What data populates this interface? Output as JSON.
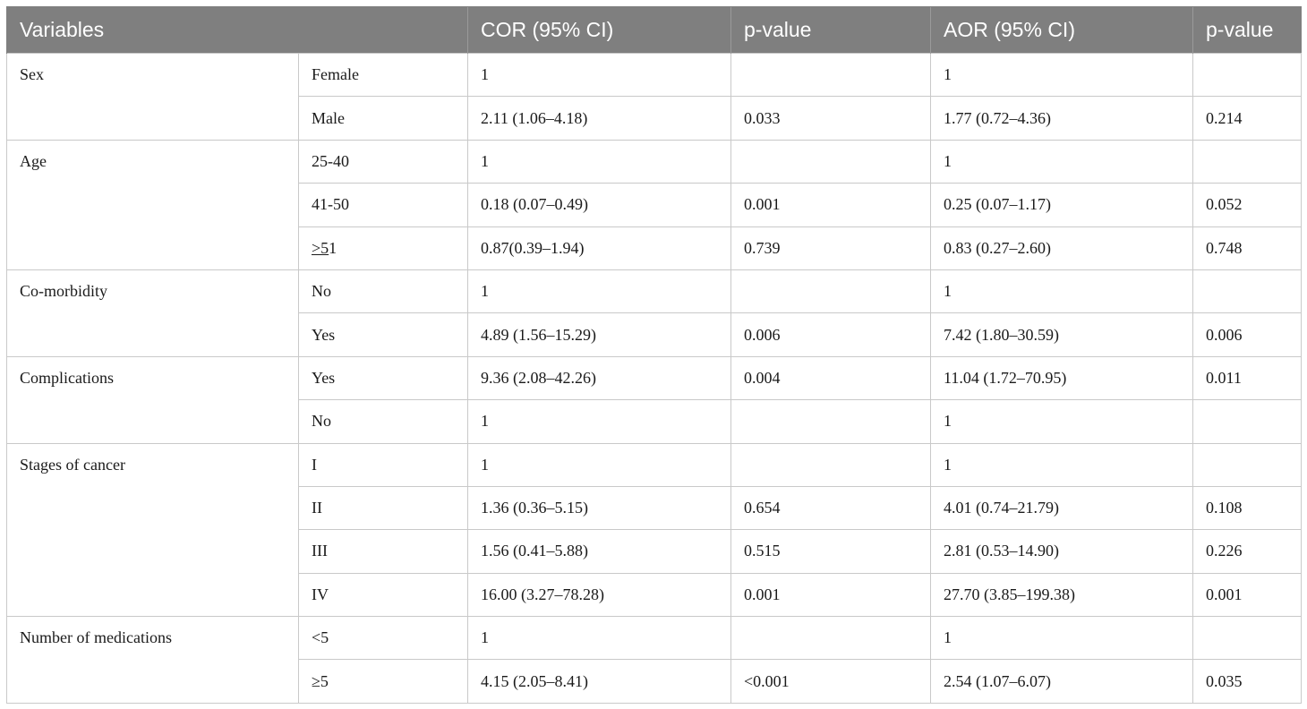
{
  "table": {
    "headers": {
      "variables": "Variables",
      "cor": "COR (95% CI)",
      "p1": "p-value",
      "aor": "AOR (95% CI)",
      "p2": "p-value"
    },
    "groups": [
      {
        "variable": "Sex",
        "rows": [
          {
            "category": "Female",
            "cor": "1",
            "p1": "",
            "aor": "1",
            "p2": ""
          },
          {
            "category": "Male",
            "cor": "2.11 (1.06–4.18)",
            "p1": "0.033",
            "aor": "1.77 (0.72–4.36)",
            "p2": "0.214"
          }
        ]
      },
      {
        "variable": "Age",
        "rows": [
          {
            "category": "25-40",
            "cor": "1",
            "p1": "",
            "aor": "1",
            "p2": ""
          },
          {
            "category": "41-50",
            "cor": "0.18 (0.07–0.49)",
            "p1": "0.001",
            "aor": "0.25 (0.07–1.17)",
            "p2": "0.052"
          },
          {
            "category_u": ">5",
            "category_rest": "1",
            "cor": "0.87(0.39–1.94)",
            "p1": "0.739",
            "aor": "0.83 (0.27–2.60)",
            "p2": "0.748"
          }
        ]
      },
      {
        "variable": "Co-morbidity",
        "rows": [
          {
            "category": "No",
            "cor": "1",
            "p1": "",
            "aor": "1",
            "p2": ""
          },
          {
            "category": "Yes",
            "cor": "4.89 (1.56–15.29)",
            "p1": "0.006",
            "aor": "7.42 (1.80–30.59)",
            "p2": "0.006"
          }
        ]
      },
      {
        "variable": "Complications",
        "rows": [
          {
            "category": "Yes",
            "cor": "9.36 (2.08–42.26)",
            "p1": "0.004",
            "aor": "11.04 (1.72–70.95)",
            "p2": "0.011"
          },
          {
            "category": "No",
            "cor": "1",
            "p1": "",
            "aor": "1",
            "p2": ""
          }
        ]
      },
      {
        "variable": "Stages of cancer",
        "rows": [
          {
            "category": "I",
            "cor": "1",
            "p1": "",
            "aor": "1",
            "p2": ""
          },
          {
            "category": "II",
            "cor": "1.36 (0.36–5.15)",
            "p1": "0.654",
            "aor": "4.01 (0.74–21.79)",
            "p2": "0.108"
          },
          {
            "category": "III",
            "cor": "1.56 (0.41–5.88)",
            "p1": "0.515",
            "aor": "2.81 (0.53–14.90)",
            "p2": "0.226"
          },
          {
            "category": "IV",
            "cor": "16.00 (3.27–78.28)",
            "p1": "0.001",
            "aor": "27.70 (3.85–199.38)",
            "p2": "0.001"
          }
        ]
      },
      {
        "variable": "Number of medications",
        "rows": [
          {
            "category": "<5",
            "cor": "1",
            "p1": "",
            "aor": "1",
            "p2": ""
          },
          {
            "category": "≥5",
            "cor": "4.15 (2.05–8.41)",
            "p1": "<0.001",
            "aor": "2.54 (1.07–6.07)",
            "p2": "0.035"
          }
        ]
      }
    ]
  },
  "colors": {
    "header_bg": "#7f7f7f",
    "header_text": "#ffffff",
    "border": "#c9c9c9"
  }
}
